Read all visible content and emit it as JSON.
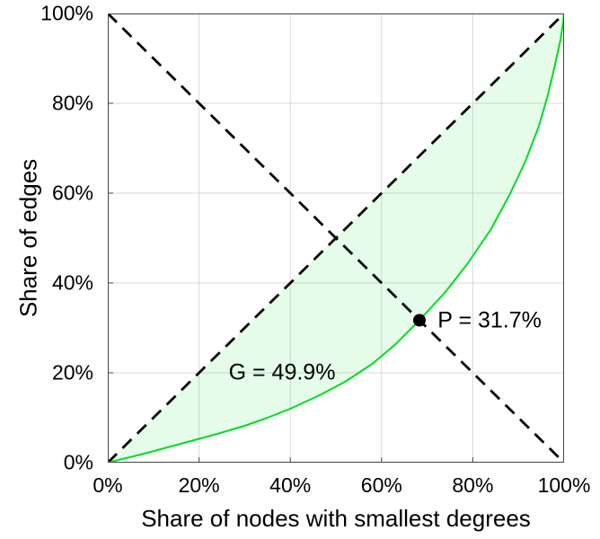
{
  "chart_data": {
    "type": "line",
    "title": "",
    "xlabel": "Share of nodes with smallest degrees",
    "ylabel": "Share of edges",
    "xlim": [
      0,
      100
    ],
    "ylim": [
      0,
      100
    ],
    "grid": true,
    "grid_color": "#d9d9d9",
    "frame_color": "#444444",
    "x_tick_values": [
      0,
      20,
      40,
      60,
      80,
      100
    ],
    "x_tick_labels": [
      "0%",
      "20%",
      "40%",
      "60%",
      "80%",
      "100%"
    ],
    "y_tick_values": [
      0,
      20,
      40,
      60,
      80,
      100
    ],
    "y_tick_labels": [
      "0%",
      "20%",
      "40%",
      "60%",
      "80%",
      "100%"
    ],
    "legend": null,
    "series": [
      {
        "name": "lorenz-curve",
        "style": "solid",
        "color": "#00dd22",
        "width": 2,
        "fill_color": "rgba(0, 221, 34, 0.10)",
        "points": [
          [
            0,
            0
          ],
          [
            8,
            2
          ],
          [
            16,
            4.2
          ],
          [
            24,
            6.4
          ],
          [
            30,
            8.2
          ],
          [
            35,
            10
          ],
          [
            40,
            12
          ],
          [
            46,
            14.8
          ],
          [
            52,
            18
          ],
          [
            58,
            22
          ],
          [
            63,
            26.3
          ],
          [
            68.3,
            31.7
          ],
          [
            74,
            38
          ],
          [
            79,
            44.5
          ],
          [
            84,
            52
          ],
          [
            88,
            59.5
          ],
          [
            91.5,
            67
          ],
          [
            94.5,
            75
          ],
          [
            96.5,
            82
          ],
          [
            98,
            88.5
          ],
          [
            99.2,
            94
          ],
          [
            99.8,
            98
          ],
          [
            100,
            100
          ]
        ]
      },
      {
        "name": "equality-diagonal",
        "style": "dashed",
        "color": "#000000",
        "width": 2.8,
        "points": [
          [
            0,
            0
          ],
          [
            100,
            100
          ]
        ]
      },
      {
        "name": "anti-diagonal",
        "style": "dashed",
        "color": "#000000",
        "width": 2.8,
        "points": [
          [
            0,
            100
          ],
          [
            100,
            0
          ]
        ]
      }
    ],
    "point_P": {
      "x": 68.3,
      "y": 31.7,
      "color": "#000000",
      "radius": 7
    },
    "annotations": [
      {
        "name": "g-label",
        "text": "G = 49.9%",
        "x": 26.5,
        "y": 20
      },
      {
        "name": "p-label",
        "text": "P = 31.7%",
        "x": 72.3,
        "y": 31.7
      }
    ]
  }
}
